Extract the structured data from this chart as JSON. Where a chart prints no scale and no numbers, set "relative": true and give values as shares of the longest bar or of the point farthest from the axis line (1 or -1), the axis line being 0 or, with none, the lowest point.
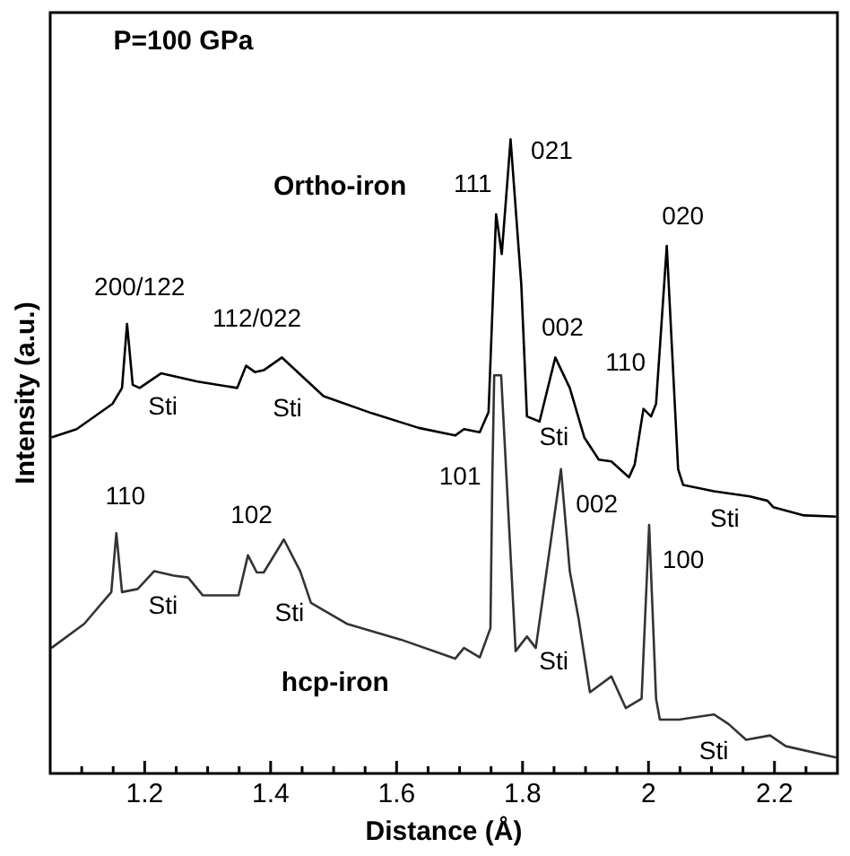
{
  "chart_data": {
    "type": "line",
    "relative": true,
    "xlabel": "Distance (Å)",
    "ylabel": "Intensity (a.u.)",
    "xlim": [
      1.05,
      2.3
    ],
    "xticks": [
      {
        "value": 1.1,
        "label": null
      },
      {
        "value": 1.15,
        "label": null
      },
      1.2,
      {
        "value": 1.25,
        "label": null
      },
      {
        "value": 1.3,
        "label": null
      },
      {
        "value": 1.35,
        "label": null
      },
      1.4,
      {
        "value": 1.45,
        "label": null
      },
      {
        "value": 1.5,
        "label": null
      },
      {
        "value": 1.55,
        "label": null
      },
      1.6,
      {
        "value": 1.65,
        "label": null
      },
      {
        "value": 1.7,
        "label": null
      },
      {
        "value": 1.75,
        "label": null
      },
      1.8,
      {
        "value": 1.85,
        "label": null
      },
      {
        "value": 1.9,
        "label": null
      },
      {
        "value": 1.95,
        "label": null
      },
      2,
      {
        "value": 2.05,
        "label": null
      },
      {
        "value": 2.1,
        "label": null
      },
      {
        "value": 2.15,
        "label": null
      },
      2.2,
      {
        "value": 2.25,
        "label": null
      }
    ],
    "tick_labels": "x",
    "grid": false,
    "legend": false,
    "marker": "none",
    "line_style": "solid",
    "series": [
      {
        "color": "#000000",
        "x": [
          1.052,
          1.092,
          1.149,
          1.164,
          1.172,
          1.181,
          1.192,
          1.226,
          1.284,
          1.347,
          1.361,
          1.375,
          1.389,
          1.418,
          1.484,
          1.561,
          1.635,
          1.693,
          1.707,
          1.732,
          1.746,
          1.758,
          1.767,
          1.781,
          1.798,
          1.807,
          1.827,
          1.852,
          1.875,
          1.898,
          1.921,
          1.941,
          1.969,
          1.978,
          1.992,
          2.004,
          2.012,
          2.029,
          2.047,
          2.055,
          2.104,
          2.161,
          2.189,
          2.198,
          2.247,
          2.298
        ],
        "values": [
          0.53,
          0.543,
          0.583,
          0.608,
          0.709,
          0.613,
          0.608,
          0.631,
          0.618,
          0.608,
          0.643,
          0.633,
          0.636,
          0.656,
          0.595,
          0.568,
          0.545,
          0.533,
          0.543,
          0.538,
          0.57,
          0.882,
          0.819,
          1.0,
          0.771,
          0.563,
          0.555,
          0.656,
          0.608,
          0.53,
          0.495,
          0.492,
          0.467,
          0.487,
          0.575,
          0.563,
          0.583,
          0.832,
          0.48,
          0.455,
          0.445,
          0.437,
          0.43,
          0.42,
          0.407,
          0.405
        ]
      },
      {
        "color": "#333333",
        "x": [
          1.052,
          1.104,
          1.147,
          1.155,
          1.164,
          1.189,
          1.215,
          1.246,
          1.269,
          1.292,
          1.349,
          1.364,
          1.378,
          1.389,
          1.421,
          1.447,
          1.464,
          1.521,
          1.607,
          1.693,
          1.707,
          1.732,
          1.749,
          1.752,
          1.755,
          1.766,
          1.789,
          1.807,
          1.821,
          1.861,
          1.875,
          1.889,
          1.907,
          1.941,
          1.964,
          1.989,
          2.001,
          2.012,
          2.018,
          2.049,
          2.104,
          2.127,
          2.155,
          2.193,
          2.218,
          2.298
        ],
        "values": [
          0.198,
          0.236,
          0.286,
          0.379,
          0.286,
          0.291,
          0.319,
          0.312,
          0.309,
          0.281,
          0.281,
          0.344,
          0.317,
          0.317,
          0.369,
          0.319,
          0.269,
          0.236,
          0.211,
          0.181,
          0.198,
          0.183,
          0.229,
          0.467,
          0.628,
          0.628,
          0.193,
          0.216,
          0.198,
          0.48,
          0.319,
          0.244,
          0.128,
          0.153,
          0.103,
          0.118,
          0.392,
          0.118,
          0.085,
          0.085,
          0.093,
          0.078,
          0.053,
          0.06,
          0.043,
          0.025
        ]
      }
    ],
    "annotations": [
      "P=100 GPa",
      "Ortho-iron",
      "hcp-iron",
      {
        "text": "200/122",
        "x": 1.172,
        "y": 0.709
      },
      {
        "text": "112/022",
        "x": 1.418,
        "y": 0.656
      },
      {
        "text": "Sti",
        "x": 1.226,
        "y": 0.631
      },
      {
        "text": "Sti",
        "x": 1.418,
        "y": 0.656
      },
      {
        "text": "111",
        "x": 1.758,
        "y": 0.882
      },
      {
        "text": "021",
        "x": 1.781,
        "y": 1.0
      },
      {
        "text": "002",
        "x": 1.852,
        "y": 0.656
      },
      {
        "text": "110",
        "x": 1.992,
        "y": 0.575
      },
      {
        "text": "020",
        "x": 2.029,
        "y": 0.832
      },
      {
        "text": "Sti",
        "x": 1.827,
        "y": 0.555
      },
      {
        "text": "Sti",
        "x": 2.104,
        "y": 0.445
      },
      {
        "text": "110",
        "x": 1.155,
        "y": 0.379
      },
      {
        "text": "102",
        "x": 1.364,
        "y": 0.344
      },
      {
        "text": "Sti",
        "x": 1.215,
        "y": 0.319
      },
      {
        "text": "Sti",
        "x": 1.464,
        "y": 0.269
      },
      {
        "text": "101",
        "x": 1.752,
        "y": 0.467
      },
      {
        "text": "002",
        "x": 1.861,
        "y": 0.48
      },
      {
        "text": "100",
        "x": 2.001,
        "y": 0.392
      },
      {
        "text": "Sti",
        "x": 1.821,
        "y": 0.198
      },
      {
        "text": "Sti",
        "x": 2.155,
        "y": 0.053
      }
    ]
  }
}
